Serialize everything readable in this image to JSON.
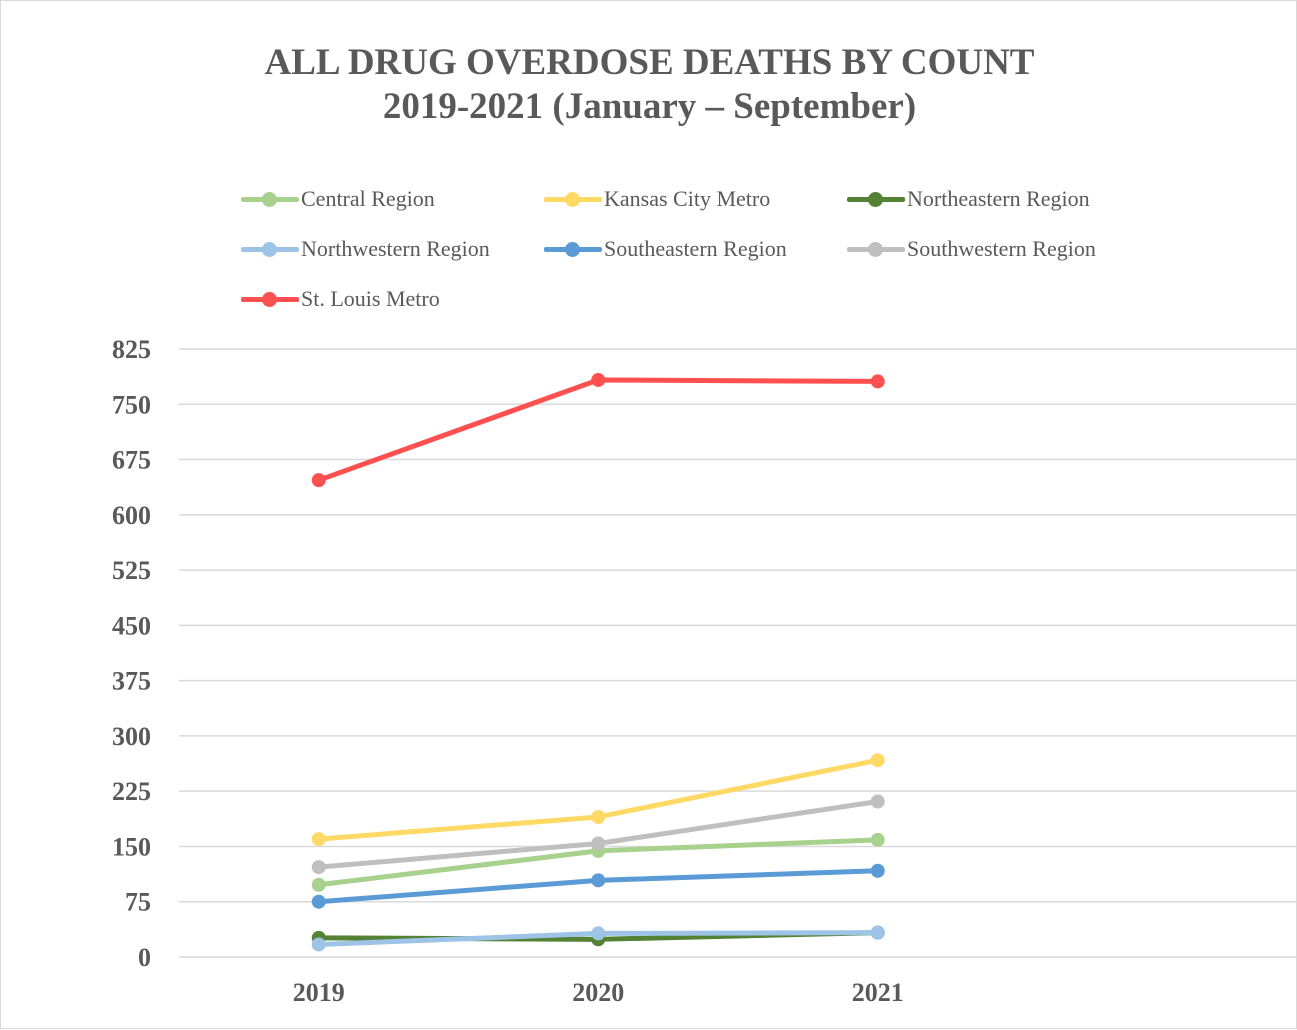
{
  "title_line1": "ALL DRUG OVERDOSE DEATHS BY COUNT",
  "title_line2": "2019-2021 (January – September)",
  "chart_data": {
    "type": "line",
    "title": "ALL DRUG OVERDOSE DEATHS BY COUNT 2019-2021 (January – September)",
    "categories": [
      "2019",
      "2020",
      "2021"
    ],
    "x_extent": 4,
    "ylim": [
      0,
      825
    ],
    "yticks": [
      0,
      75,
      150,
      225,
      300,
      375,
      450,
      525,
      600,
      675,
      750,
      825
    ],
    "grid": true,
    "legend_position": "top",
    "series": [
      {
        "name": "Central Region",
        "color": "#a9d18e",
        "values": [
          98,
          144,
          159
        ]
      },
      {
        "name": "Kansas City Metro",
        "color": "#ffd966",
        "values": [
          160,
          190,
          267
        ]
      },
      {
        "name": "Northeastern Region",
        "color": "#548235",
        "values": [
          26,
          24,
          33
        ]
      },
      {
        "name": "Northwestern Region",
        "color": "#9dc3e6",
        "values": [
          17,
          32,
          33
        ]
      },
      {
        "name": "Southeastern Region",
        "color": "#5b9bd5",
        "values": [
          75,
          104,
          117
        ]
      },
      {
        "name": "Southwestern Region",
        "color": "#bfbfbf",
        "values": [
          122,
          154,
          211
        ]
      },
      {
        "name": "St. Louis Metro",
        "color": "#ff5050",
        "values": [
          647,
          783,
          781
        ]
      }
    ]
  }
}
